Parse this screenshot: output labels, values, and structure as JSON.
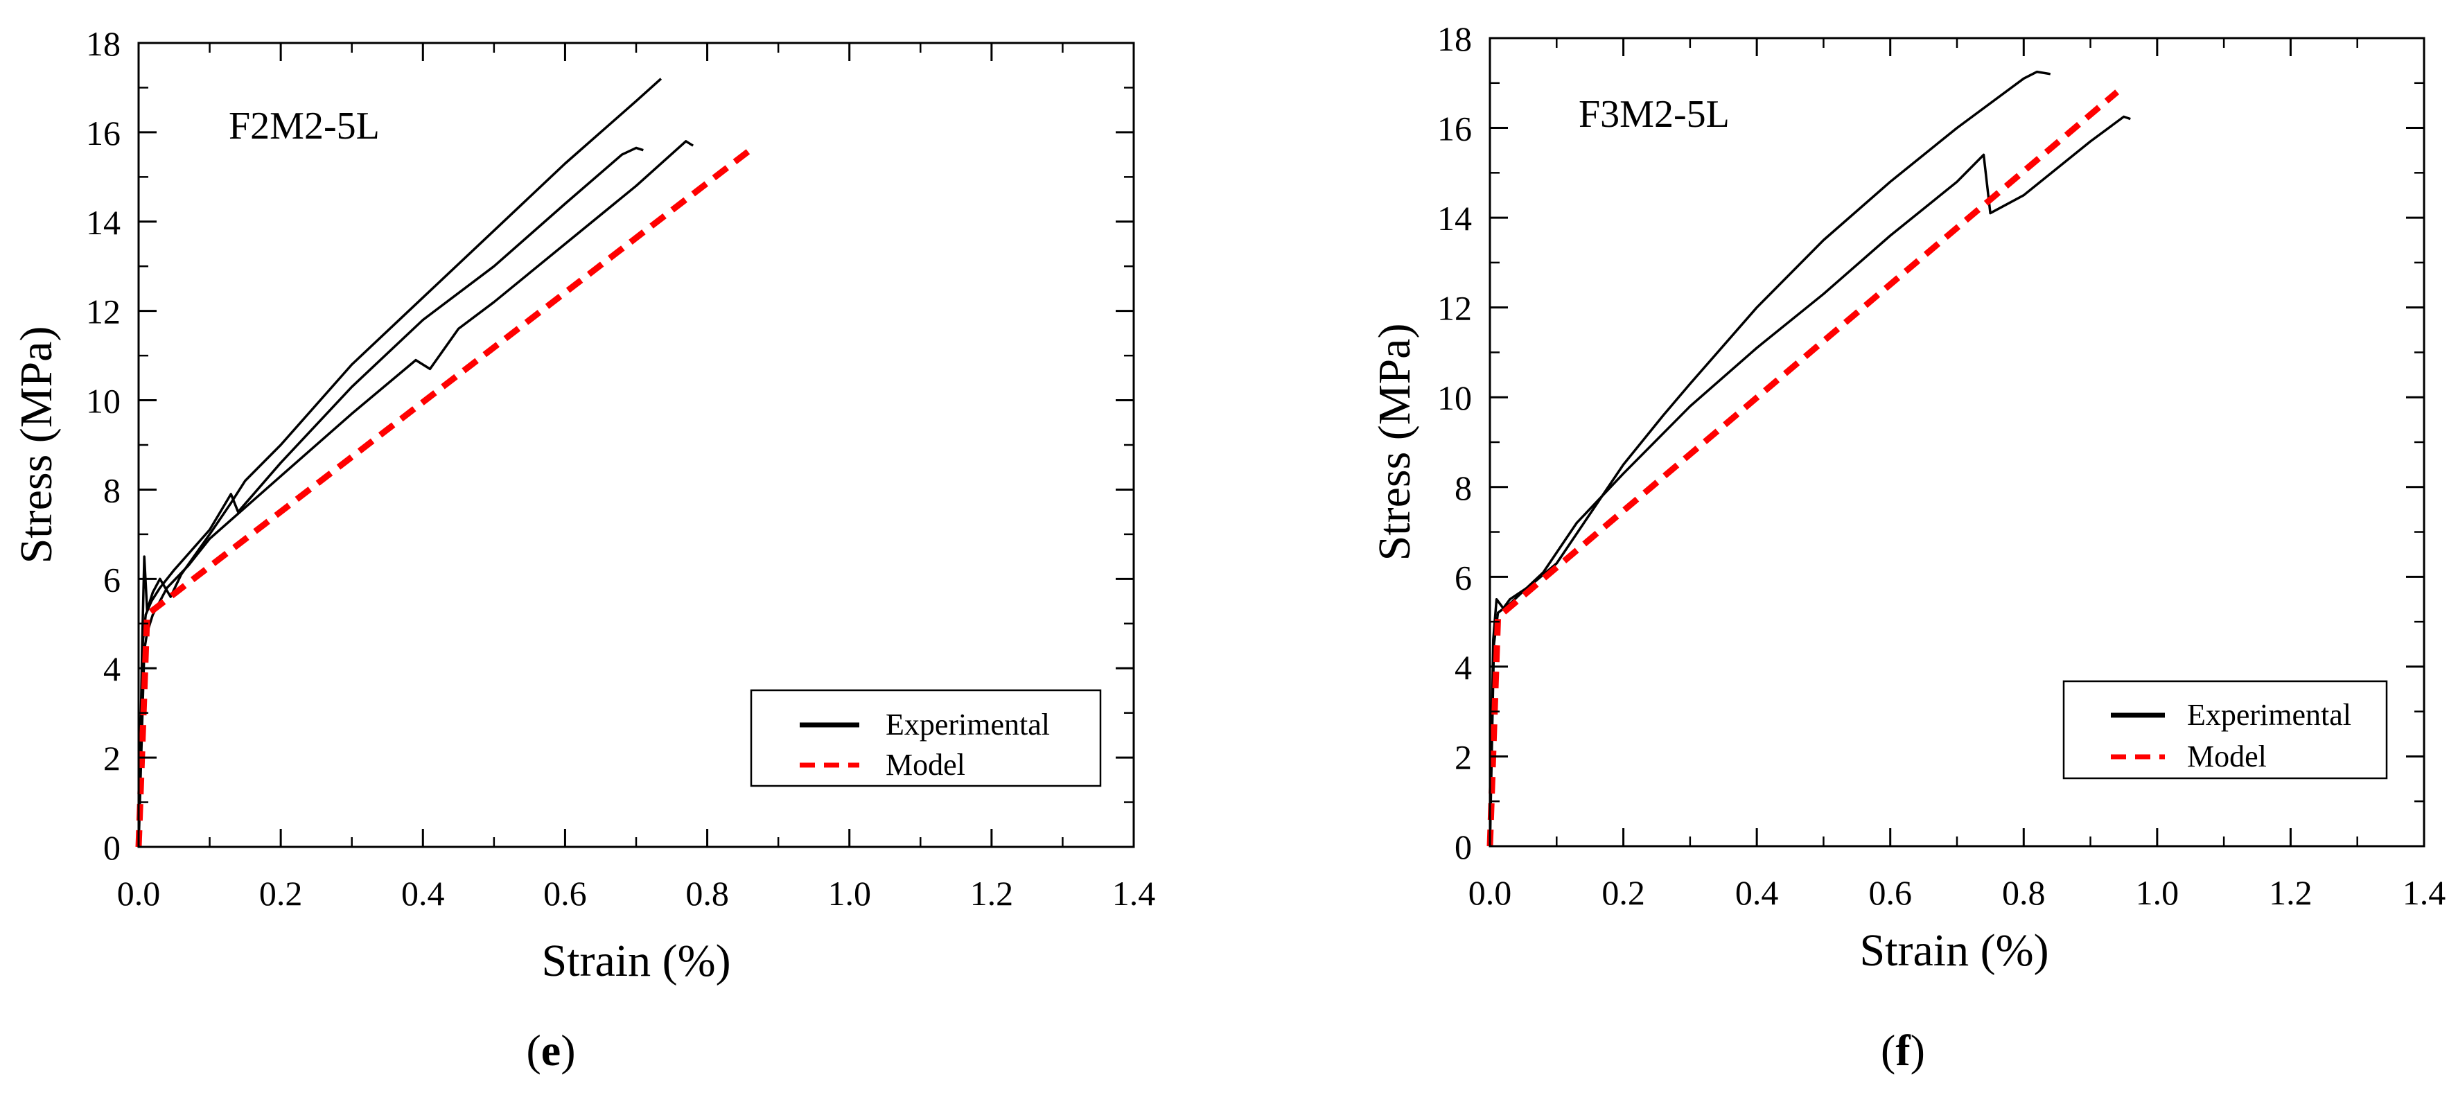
{
  "figure_panels": [
    {
      "paren_open": "(",
      "letter": "e",
      "paren_close": ")"
    },
    {
      "paren_open": "(",
      "letter": "f",
      "paren_close": ")"
    }
  ],
  "chart_data": [
    {
      "type": "line",
      "title": "F2M2-5L",
      "xlabel": "Strain (%)",
      "ylabel": "Stress (MPa)",
      "xlim": [
        0,
        1.4
      ],
      "ylim": [
        0,
        18
      ],
      "xticks": [
        "0.0",
        "0.2",
        "0.4",
        "0.6",
        "0.8",
        "1.0",
        "1.2",
        "1.4"
      ],
      "yticks": [
        "0",
        "2",
        "4",
        "6",
        "8",
        "10",
        "12",
        "14",
        "16",
        "18"
      ],
      "legend": {
        "position": "bottom-right",
        "items": [
          {
            "label": "Experimental",
            "color": "#000000",
            "style": "solid"
          },
          {
            "label": "Model",
            "color": "#ff0000",
            "style": "dashed"
          }
        ]
      },
      "series": [
        {
          "legend": "Experimental",
          "color": "#000000",
          "style": "solid",
          "points": [
            [
              0,
              0
            ],
            [
              0.005,
              4.5
            ],
            [
              0.008,
              6.5
            ],
            [
              0.012,
              5.3
            ],
            [
              0.02,
              5.7
            ],
            [
              0.03,
              6.0
            ],
            [
              0.045,
              5.6
            ],
            [
              0.06,
              6.1
            ],
            [
              0.1,
              7.0
            ],
            [
              0.13,
              7.7
            ],
            [
              0.15,
              8.2
            ],
            [
              0.2,
              9.0
            ],
            [
              0.3,
              10.8
            ],
            [
              0.4,
              12.3
            ],
            [
              0.5,
              13.8
            ],
            [
              0.6,
              15.3
            ],
            [
              0.7,
              16.7
            ],
            [
              0.735,
              17.2
            ]
          ]
        },
        {
          "legend": "Experimental",
          "color": "#000000",
          "style": "solid",
          "points": [
            [
              0,
              0
            ],
            [
              0.006,
              4.6
            ],
            [
              0.01,
              5.2
            ],
            [
              0.018,
              5.5
            ],
            [
              0.03,
              5.8
            ],
            [
              0.05,
              6.2
            ],
            [
              0.1,
              7.1
            ],
            [
              0.13,
              7.9
            ],
            [
              0.14,
              7.5
            ],
            [
              0.2,
              8.6
            ],
            [
              0.3,
              10.3
            ],
            [
              0.4,
              11.8
            ],
            [
              0.5,
              13.0
            ],
            [
              0.6,
              14.4
            ],
            [
              0.68,
              15.5
            ],
            [
              0.7,
              15.65
            ],
            [
              0.71,
              15.6
            ]
          ]
        },
        {
          "legend": "Experimental",
          "color": "#000000",
          "style": "solid",
          "points": [
            [
              0,
              0
            ],
            [
              0.008,
              4.4
            ],
            [
              0.012,
              4.8
            ],
            [
              0.02,
              5.2
            ],
            [
              0.04,
              5.8
            ],
            [
              0.07,
              6.3
            ],
            [
              0.1,
              6.9
            ],
            [
              0.2,
              8.3
            ],
            [
              0.3,
              9.7
            ],
            [
              0.39,
              10.9
            ],
            [
              0.41,
              10.7
            ],
            [
              0.45,
              11.6
            ],
            [
              0.5,
              12.2
            ],
            [
              0.6,
              13.5
            ],
            [
              0.7,
              14.8
            ],
            [
              0.77,
              15.8
            ],
            [
              0.78,
              15.7
            ]
          ]
        },
        {
          "legend": "Model",
          "color": "#ff0000",
          "style": "dashed",
          "points": [
            [
              0,
              0
            ],
            [
              0.012,
              5.2
            ],
            [
              0.86,
              15.6
            ]
          ]
        }
      ]
    },
    {
      "type": "line",
      "title": "F3M2-5L",
      "xlabel": "Strain (%)",
      "ylabel": "Stress (MPa)",
      "xlim": [
        0,
        1.4
      ],
      "ylim": [
        0,
        18
      ],
      "xticks": [
        "0.0",
        "0.2",
        "0.4",
        "0.6",
        "0.8",
        "1.0",
        "1.2",
        "1.4"
      ],
      "yticks": [
        "0",
        "2",
        "4",
        "6",
        "8",
        "10",
        "12",
        "14",
        "16",
        "18"
      ],
      "legend": {
        "position": "bottom-right",
        "items": [
          {
            "label": "Experimental",
            "color": "#000000",
            "style": "solid"
          },
          {
            "label": "Model",
            "color": "#ff0000",
            "style": "dashed"
          }
        ]
      },
      "series": [
        {
          "legend": "Experimental",
          "color": "#000000",
          "style": "solid",
          "points": [
            [
              0,
              0
            ],
            [
              0.005,
              4.6
            ],
            [
              0.01,
              5.5
            ],
            [
              0.02,
              5.3
            ],
            [
              0.03,
              5.5
            ],
            [
              0.06,
              5.8
            ],
            [
              0.1,
              6.3
            ],
            [
              0.15,
              7.4
            ],
            [
              0.2,
              8.5
            ],
            [
              0.26,
              9.6
            ],
            [
              0.3,
              10.3
            ],
            [
              0.4,
              12.0
            ],
            [
              0.5,
              13.5
            ],
            [
              0.6,
              14.8
            ],
            [
              0.7,
              16.0
            ],
            [
              0.8,
              17.1
            ],
            [
              0.82,
              17.25
            ],
            [
              0.84,
              17.2
            ]
          ]
        },
        {
          "legend": "Experimental",
          "color": "#000000",
          "style": "solid",
          "points": [
            [
              0,
              0
            ],
            [
              0.006,
              4.5
            ],
            [
              0.012,
              5.2
            ],
            [
              0.03,
              5.4
            ],
            [
              0.08,
              6.1
            ],
            [
              0.13,
              7.2
            ],
            [
              0.2,
              8.3
            ],
            [
              0.3,
              9.8
            ],
            [
              0.4,
              11.1
            ],
            [
              0.5,
              12.3
            ],
            [
              0.6,
              13.6
            ],
            [
              0.7,
              14.8
            ],
            [
              0.74,
              15.4
            ],
            [
              0.75,
              14.1
            ],
            [
              0.8,
              14.5
            ],
            [
              0.9,
              15.7
            ],
            [
              0.95,
              16.25
            ],
            [
              0.96,
              16.2
            ]
          ]
        },
        {
          "legend": "Model",
          "color": "#ff0000",
          "style": "dashed",
          "points": [
            [
              0,
              0
            ],
            [
              0.012,
              5.1
            ],
            [
              0.94,
              16.8
            ]
          ]
        }
      ]
    }
  ]
}
